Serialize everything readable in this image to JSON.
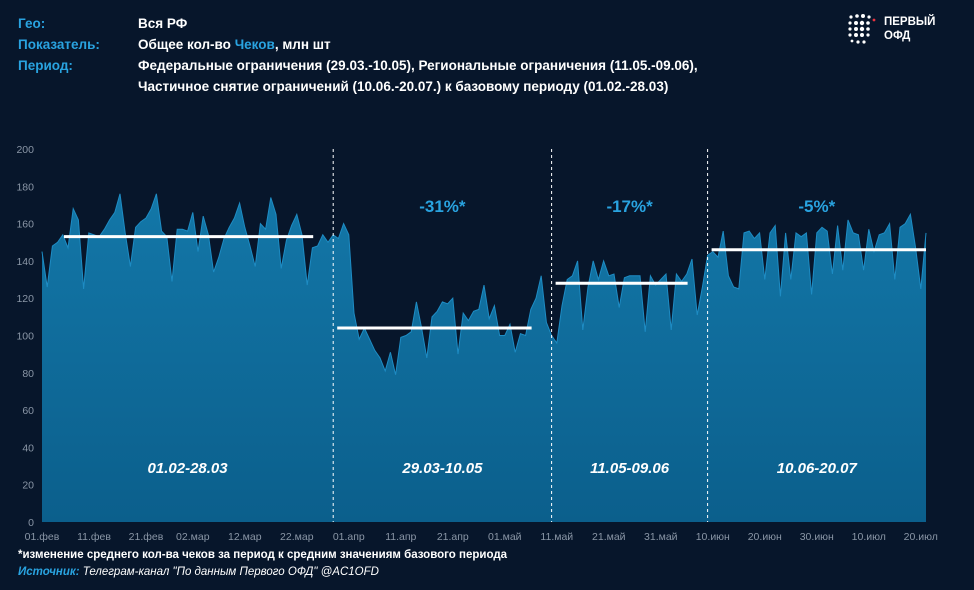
{
  "header": {
    "geo_label": "Гео:",
    "geo_value": "Вся РФ",
    "indicator_label": "Показатель:",
    "indicator_value_pre": "Общее кол-во ",
    "indicator_value_hl": "Чеков",
    "indicator_value_post": ", млн шт",
    "period_label": "Период:",
    "period_line1": "Федеральные ограничения (29.03.-10.05), Региональные ограничения (11.05.-09.06),",
    "period_line2": "Частичное снятие ограничений (10.06.-20.07.) к базовому периоду (01.02.-28.03)"
  },
  "logo": {
    "line1": "ПЕРВЫЙ",
    "line2": "ОФД"
  },
  "footnote": "*изменение среднего кол-ва чеков  за период к средним значениям базового периода",
  "source": {
    "label": "Источник:",
    "text": " Телеграм-канал \"По данным Первого ОФД\" @AC1OFD"
  },
  "colors": {
    "area": "#0b5f8c",
    "area_top": "#1377a8",
    "accent": "#29a3e0",
    "avg_line": "#ffffff"
  },
  "chart_data": {
    "type": "area",
    "title": "",
    "xlabel": "",
    "ylabel": "",
    "ylim": [
      0,
      200
    ],
    "y_ticks": [
      0,
      20,
      40,
      60,
      80,
      100,
      120,
      140,
      160,
      180,
      200
    ],
    "x_tick_labels": [
      "01.фев",
      "11.фев",
      "21.фев",
      "02.мар",
      "12.мар",
      "22.мар",
      "01.апр",
      "11.апр",
      "21.апр",
      "01.май",
      "11.май",
      "21.май",
      "31.май",
      "10.июн",
      "20.июн",
      "30.июн",
      "10.июл",
      "20.июл"
    ],
    "x_tick_day_index": [
      0,
      10,
      20,
      29,
      39,
      49,
      59,
      69,
      79,
      89,
      99,
      109,
      119,
      129,
      139,
      149,
      159,
      169
    ],
    "grid": false,
    "series": [
      {
        "values": [
          145,
          126,
          148,
          150,
          154,
          147,
          168,
          162,
          125,
          155,
          154,
          153,
          157,
          162,
          166,
          176,
          155,
          137,
          158,
          161,
          163,
          168,
          176,
          156,
          153,
          129,
          157,
          157,
          156,
          166,
          145,
          164,
          154,
          134,
          142,
          152,
          158,
          163,
          171,
          158,
          148,
          137,
          160,
          157,
          174,
          165,
          136,
          151,
          159,
          165,
          154,
          127,
          147,
          148,
          154,
          150,
          154,
          152,
          160,
          154,
          112,
          98,
          104,
          98,
          92,
          88,
          81,
          91,
          79,
          99,
          100,
          102,
          118,
          104,
          88,
          110,
          113,
          118,
          117,
          120,
          90,
          112,
          108,
          113,
          114,
          127,
          109,
          116,
          100,
          100,
          106,
          91,
          101,
          100,
          114,
          120,
          132,
          107,
          100,
          96,
          116,
          130,
          132,
          140,
          103,
          126,
          140,
          130,
          140,
          132,
          133,
          115,
          131,
          132,
          132,
          132,
          102,
          132,
          127,
          130,
          133,
          103,
          133,
          129,
          133,
          141,
          111,
          126,
          143,
          145,
          142,
          156,
          132,
          126,
          125,
          155,
          156,
          152,
          155,
          130,
          155,
          159,
          121,
          155,
          130,
          155,
          153,
          155,
          122,
          155,
          158,
          156,
          133,
          159,
          135,
          162,
          155,
          154,
          135,
          157,
          145,
          154,
          155,
          160,
          130,
          158,
          160,
          165,
          147,
          125,
          155
        ]
      }
    ],
    "periods": [
      {
        "label": "01.02-28.03",
        "start": 0,
        "end": 56,
        "avg": 153,
        "change": ""
      },
      {
        "label": "29.03-10.05",
        "start": 56,
        "end": 98,
        "avg": 104,
        "change": "-31%*"
      },
      {
        "label": "11.05-09.06",
        "start": 98,
        "end": 128,
        "avg": 128,
        "change": "-17%*"
      },
      {
        "label": "10.06-20.07",
        "start": 128,
        "end": 170,
        "avg": 146,
        "change": "-5%*"
      }
    ]
  }
}
